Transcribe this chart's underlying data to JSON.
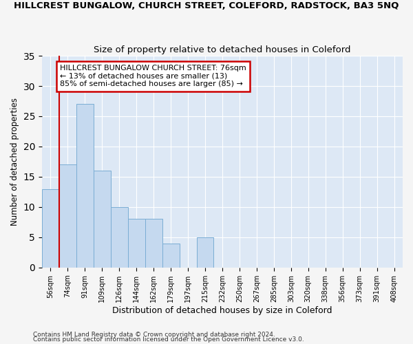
{
  "title": "HILLCREST BUNGALOW, CHURCH STREET, COLEFORD, RADSTOCK, BA3 5NQ",
  "subtitle": "Size of property relative to detached houses in Coleford",
  "xlabel": "Distribution of detached houses by size in Coleford",
  "ylabel": "Number of detached properties",
  "bin_labels": [
    "56sqm",
    "74sqm",
    "91sqm",
    "109sqm",
    "126sqm",
    "144sqm",
    "162sqm",
    "179sqm",
    "197sqm",
    "215sqm",
    "232sqm",
    "250sqm",
    "267sqm",
    "285sqm",
    "303sqm",
    "320sqm",
    "338sqm",
    "356sqm",
    "373sqm",
    "391sqm",
    "408sqm"
  ],
  "bar_values": [
    13,
    17,
    27,
    16,
    10,
    8,
    8,
    4,
    0,
    5,
    0,
    0,
    0,
    0,
    0,
    0,
    0,
    0,
    0,
    0,
    0
  ],
  "bar_color": "#c5d9ef",
  "bar_edge_color": "#7aadd4",
  "ylim": [
    0,
    35
  ],
  "yticks": [
    0,
    5,
    10,
    15,
    20,
    25,
    30,
    35
  ],
  "vline_color": "#cc0000",
  "annotation_text": "HILLCREST BUNGALOW CHURCH STREET: 76sqm\n← 13% of detached houses are smaller (13)\n85% of semi-detached houses are larger (85) →",
  "annotation_box_color": "#ffffff",
  "annotation_box_edge": "#cc0000",
  "footnote1": "Contains HM Land Registry data © Crown copyright and database right 2024.",
  "footnote2": "Contains public sector information licensed under the Open Government Licence v3.0.",
  "background_color": "#dde8f5",
  "grid_color": "#ffffff",
  "fig_color": "#f5f5f5"
}
